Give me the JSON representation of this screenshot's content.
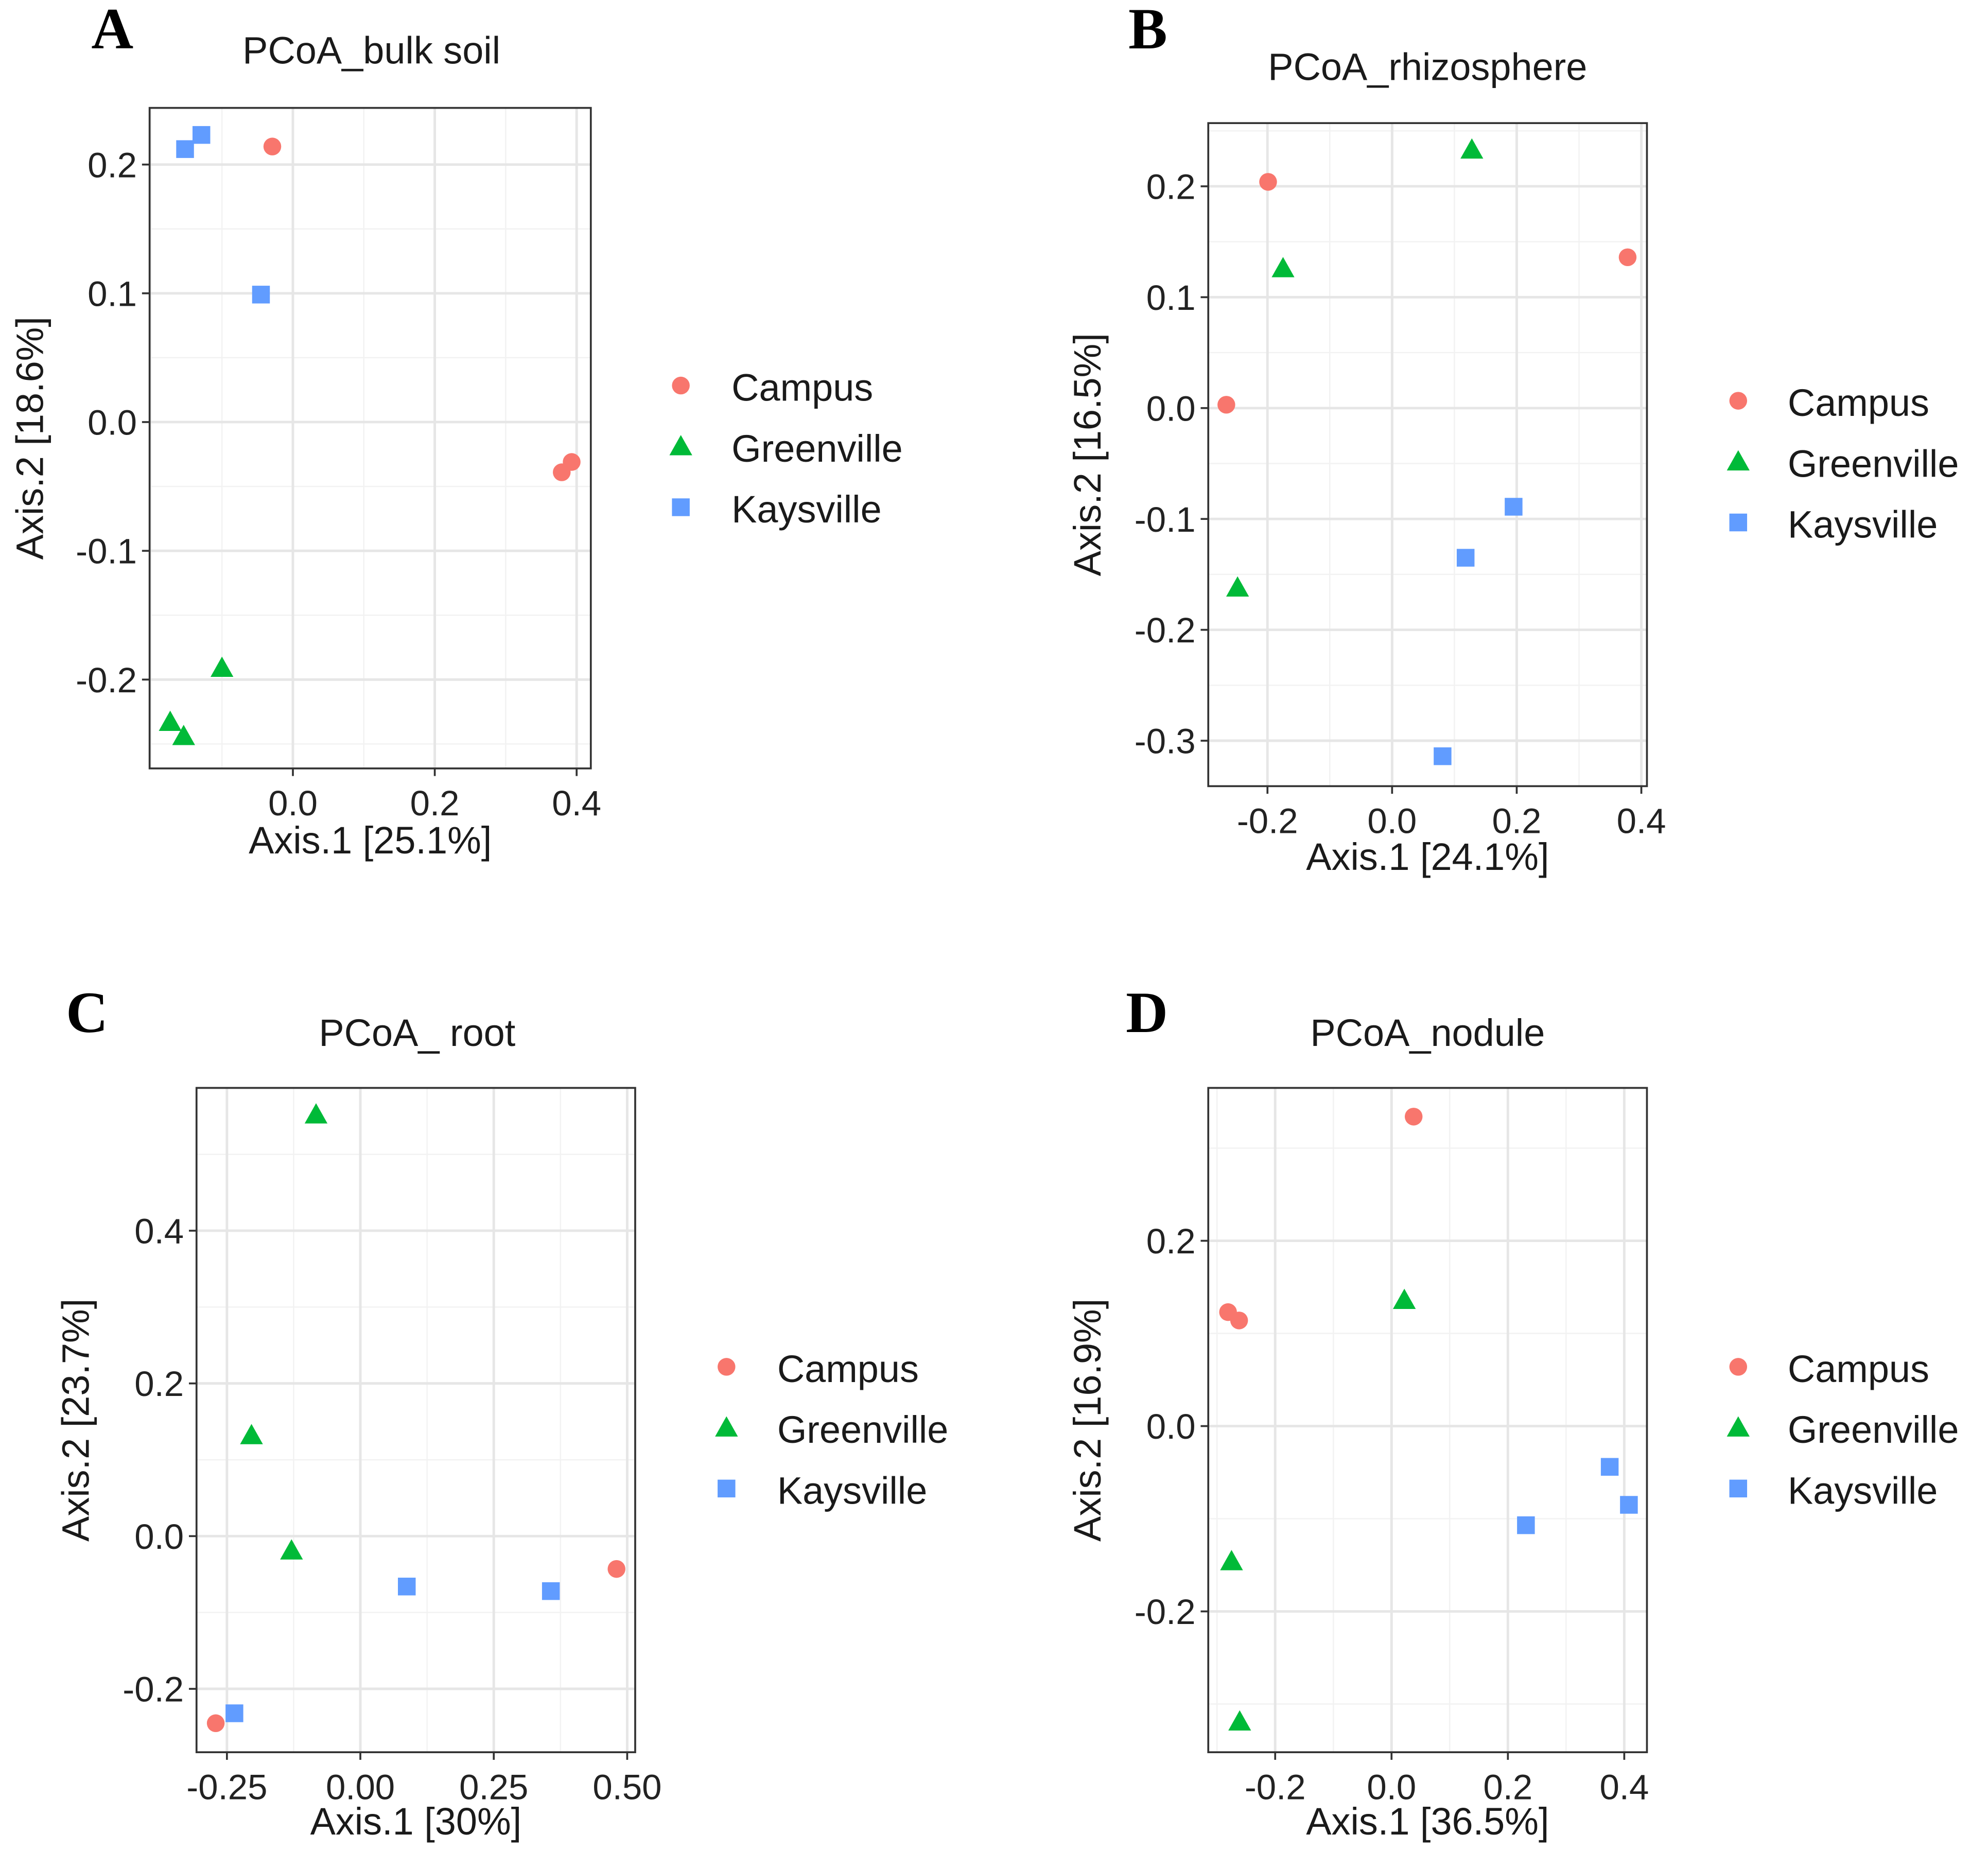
{
  "legend": {
    "groups": [
      "Campus",
      "Greenville",
      "Kaysville"
    ],
    "shapes": [
      "circle",
      "triangle",
      "square"
    ],
    "colors": [
      "#F8766D",
      "#00BA38",
      "#619CFF"
    ]
  },
  "chart_data": [
    {
      "panel": "A",
      "type": "scatter",
      "title": "PCoA_bulk soil",
      "xlabel": "Axis.1   [25.1%]",
      "ylabel": "Axis.2   [18.6%]",
      "xlim": [
        -0.202,
        0.42
      ],
      "ylim": [
        -0.269,
        0.244
      ],
      "x_ticks": [
        0.0,
        0.2,
        0.4
      ],
      "x_tick_labels": [
        "0.0",
        "0.2",
        "0.4"
      ],
      "y_ticks": [
        -0.2,
        -0.1,
        0.0,
        0.1,
        0.2
      ],
      "y_tick_labels": [
        "-0.2",
        "-0.1",
        "0.0",
        "0.1",
        "0.2"
      ],
      "grid": true,
      "legend_position": "right",
      "series": [
        {
          "name": "Campus",
          "points": [
            [
              -0.029,
              0.214
            ],
            [
              0.379,
              -0.039
            ],
            [
              0.393,
              -0.031
            ]
          ]
        },
        {
          "name": "Greenville",
          "points": [
            [
              -0.1,
              -0.191
            ],
            [
              -0.173,
              -0.233
            ],
            [
              -0.154,
              -0.244
            ]
          ]
        },
        {
          "name": "Kaysville",
          "points": [
            [
              -0.152,
              0.212
            ],
            [
              -0.129,
              0.223
            ],
            [
              -0.045,
              0.099
            ]
          ]
        }
      ]
    },
    {
      "panel": "B",
      "type": "scatter",
      "title": "PCoA_rhizosphere",
      "xlabel": "Axis.1   [24.1%]",
      "ylabel": "Axis.2   [16.5%]",
      "xlim": [
        -0.295,
        0.409
      ],
      "ylim": [
        -0.341,
        0.257
      ],
      "x_ticks": [
        -0.2,
        0.0,
        0.2,
        0.4
      ],
      "x_tick_labels": [
        "-0.2",
        "0.0",
        "0.2",
        "0.4"
      ],
      "y_ticks": [
        -0.3,
        -0.2,
        -0.1,
        0.0,
        0.1,
        0.2
      ],
      "y_tick_labels": [
        "-0.3",
        "-0.2",
        "-0.1",
        "0.0",
        "0.1",
        "0.2"
      ],
      "grid": true,
      "legend_position": "right",
      "series": [
        {
          "name": "Campus",
          "points": [
            [
              -0.199,
              0.204
            ],
            [
              0.378,
              0.136
            ],
            [
              -0.266,
              0.003
            ]
          ]
        },
        {
          "name": "Greenville",
          "points": [
            [
              0.128,
              0.233
            ],
            [
              -0.175,
              0.126
            ],
            [
              -0.248,
              -0.162
            ]
          ]
        },
        {
          "name": "Kaysville",
          "points": [
            [
              0.195,
              -0.089
            ],
            [
              0.118,
              -0.135
            ],
            [
              0.081,
              -0.314
            ]
          ]
        }
      ]
    },
    {
      "panel": "C",
      "type": "scatter",
      "title": "PCoA_ root",
      "xlabel": "Axis.1   [30%]",
      "ylabel": "Axis.2   [23.7%]",
      "xlim": [
        -0.307,
        0.515
      ],
      "ylim": [
        -0.283,
        0.587
      ],
      "x_ticks": [
        -0.25,
        0.0,
        0.25,
        0.5
      ],
      "x_tick_labels": [
        "-0.25",
        "0.00",
        "0.25",
        "0.50"
      ],
      "y_ticks": [
        -0.2,
        0.0,
        0.2,
        0.4
      ],
      "y_tick_labels": [
        "-0.2",
        "0.0",
        "0.2",
        "0.4"
      ],
      "grid": true,
      "legend_position": "right",
      "series": [
        {
          "name": "Campus",
          "points": [
            [
              0.48,
              -0.043
            ],
            [
              -0.271,
              -0.245
            ]
          ]
        },
        {
          "name": "Greenville",
          "points": [
            [
              -0.083,
              0.552
            ],
            [
              -0.204,
              0.132
            ],
            [
              -0.129,
              -0.019
            ]
          ]
        },
        {
          "name": "Kaysville",
          "points": [
            [
              0.087,
              -0.066
            ],
            [
              0.357,
              -0.072
            ],
            [
              -0.236,
              -0.232
            ]
          ]
        }
      ]
    },
    {
      "panel": "D",
      "type": "scatter",
      "title": "PCoA_nodule",
      "xlabel": "Axis.1   [36.5%]",
      "ylabel": "Axis.2   [16.9%]",
      "xlim": [
        -0.315,
        0.439
      ],
      "ylim": [
        -0.352,
        0.365
      ],
      "x_ticks": [
        -0.2,
        0.0,
        0.2,
        0.4
      ],
      "x_tick_labels": [
        "-0.2",
        "0.0",
        "0.2",
        "0.4"
      ],
      "y_ticks": [
        -0.2,
        0.0,
        0.2
      ],
      "y_tick_labels": [
        "-0.2",
        "0.0",
        "0.2"
      ],
      "grid": true,
      "legend_position": "right",
      "series": [
        {
          "name": "Campus",
          "points": [
            [
              0.038,
              0.334
            ],
            [
              -0.281,
              0.123
            ],
            [
              -0.262,
              0.114
            ]
          ]
        },
        {
          "name": "Greenville",
          "points": [
            [
              0.022,
              0.136
            ],
            [
              -0.275,
              -0.146
            ],
            [
              -0.261,
              -0.319
            ]
          ]
        },
        {
          "name": "Kaysville",
          "points": [
            [
              0.375,
              -0.044
            ],
            [
              0.408,
              -0.085
            ],
            [
              0.231,
              -0.107
            ]
          ]
        }
      ]
    }
  ]
}
